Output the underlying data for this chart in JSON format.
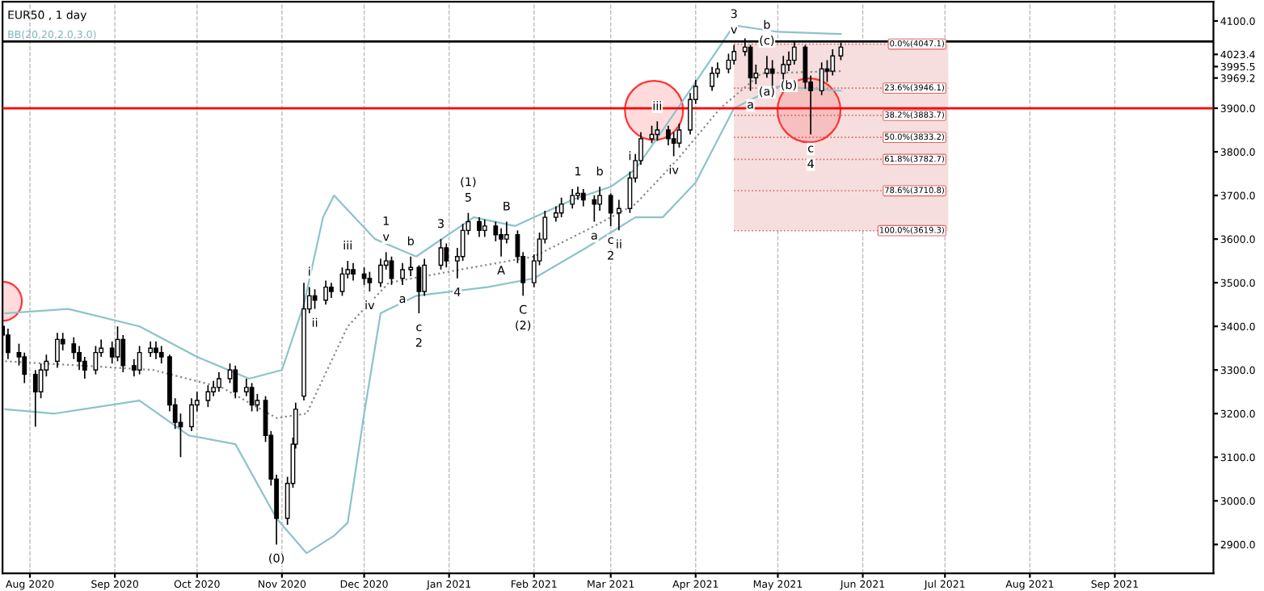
{
  "chart_data": {
    "type": "candlestick",
    "title": "EUR50 , 1 day",
    "subtitle": "BB(20,20,2.0,3.0)",
    "series": [
      {
        "color": "#000000",
        "x": [
          "2020-07-22",
          "2020-07-24",
          "2020-07-28",
          "2020-07-30",
          "2020-08-03",
          "2020-08-05",
          "2020-08-07",
          "2020-08-11",
          "2020-08-13",
          "2020-08-17",
          "2020-08-19",
          "2020-08-21",
          "2020-08-25",
          "2020-08-27",
          "2020-08-31",
          "2020-09-02",
          "2020-09-04",
          "2020-09-08",
          "2020-09-10",
          "2020-09-14",
          "2020-09-16",
          "2020-09-18",
          "2020-09-21",
          "2020-09-23",
          "2020-09-25",
          "2020-09-29",
          "2020-10-01",
          "2020-10-05",
          "2020-10-07",
          "2020-10-09",
          "2020-10-13",
          "2020-10-15",
          "2020-10-19",
          "2020-10-21",
          "2020-10-23",
          "2020-10-26",
          "2020-10-28",
          "2020-10-30",
          "2020-11-03",
          "2020-11-05",
          "2020-11-06",
          "2020-11-09",
          "2020-11-11",
          "2020-11-13",
          "2020-11-17",
          "2020-11-19",
          "2020-11-23",
          "2020-11-25",
          "2020-11-27",
          "2020-12-01",
          "2020-12-03",
          "2020-12-07",
          "2020-12-09",
          "2020-12-11",
          "2020-12-15",
          "2020-12-18",
          "2020-12-21",
          "2020-12-23",
          "2020-12-29",
          "2020-12-31",
          "2021-01-04",
          "2021-01-06",
          "2021-01-08",
          "2021-01-12",
          "2021-01-14",
          "2021-01-18",
          "2021-01-20",
          "2021-01-22",
          "2021-01-26",
          "2021-01-28",
          "2021-02-01",
          "2021-02-03",
          "2021-02-05",
          "2021-02-09",
          "2021-02-11",
          "2021-02-15",
          "2021-02-17",
          "2021-02-19",
          "2021-02-23",
          "2021-02-25",
          "2021-03-01",
          "2021-03-04",
          "2021-03-08",
          "2021-03-10",
          "2021-03-12",
          "2021-03-16",
          "2021-03-18",
          "2021-03-22",
          "2021-03-24",
          "2021-03-26",
          "2021-03-30",
          "2021-04-01",
          "2021-04-07",
          "2021-04-09",
          "2021-04-13",
          "2021-04-15",
          "2021-04-19",
          "2021-04-21",
          "2021-04-23",
          "2021-04-27",
          "2021-04-29",
          "2021-05-03",
          "2021-05-05",
          "2021-05-07",
          "2021-05-11",
          "2021-05-13",
          "2021-05-17",
          "2021-05-19",
          "2021-05-21",
          "2021-05-24"
        ],
        "ohlc": [
          [
            3400,
            3420,
            3365,
            3380
          ],
          [
            3380,
            3395,
            3325,
            3340
          ],
          [
            3340,
            3360,
            3310,
            3330
          ],
          [
            3330,
            3340,
            3270,
            3290
          ],
          [
            3290,
            3300,
            3170,
            3250
          ],
          [
            3250,
            3315,
            3235,
            3300
          ],
          [
            3300,
            3335,
            3285,
            3320
          ],
          [
            3320,
            3385,
            3305,
            3370
          ],
          [
            3370,
            3385,
            3345,
            3360
          ],
          [
            3360,
            3375,
            3325,
            3340
          ],
          [
            3340,
            3355,
            3300,
            3320
          ],
          [
            3320,
            3330,
            3280,
            3300
          ],
          [
            3300,
            3355,
            3290,
            3340
          ],
          [
            3340,
            3370,
            3330,
            3350
          ],
          [
            3350,
            3365,
            3315,
            3330
          ],
          [
            3330,
            3400,
            3320,
            3370
          ],
          [
            3370,
            3380,
            3295,
            3310
          ],
          [
            3310,
            3325,
            3285,
            3300
          ],
          [
            3300,
            3355,
            3290,
            3340
          ],
          [
            3340,
            3365,
            3330,
            3350
          ],
          [
            3350,
            3365,
            3325,
            3340
          ],
          [
            3340,
            3355,
            3315,
            3330
          ],
          [
            3330,
            3335,
            3205,
            3220
          ],
          [
            3220,
            3235,
            3165,
            3180
          ],
          [
            3180,
            3200,
            3100,
            3170
          ],
          [
            3170,
            3235,
            3160,
            3220
          ],
          [
            3220,
            3250,
            3205,
            3230
          ],
          [
            3230,
            3265,
            3215,
            3250
          ],
          [
            3250,
            3275,
            3240,
            3260
          ],
          [
            3260,
            3295,
            3250,
            3280
          ],
          [
            3280,
            3315,
            3270,
            3300
          ],
          [
            3300,
            3310,
            3235,
            3250
          ],
          [
            3250,
            3280,
            3240,
            3260
          ],
          [
            3260,
            3270,
            3205,
            3220
          ],
          [
            3220,
            3245,
            3205,
            3230
          ],
          [
            3230,
            3240,
            3135,
            3150
          ],
          [
            3150,
            3160,
            3035,
            3050
          ],
          [
            3050,
            3060,
            2900,
            2960
          ],
          [
            2960,
            3055,
            2945,
            3040
          ],
          [
            3040,
            3145,
            3030,
            3130
          ],
          [
            3130,
            3225,
            3120,
            3210
          ],
          [
            3240,
            3500,
            3230,
            3440
          ],
          [
            3440,
            3490,
            3430,
            3470
          ],
          [
            3470,
            3485,
            3440,
            3460
          ],
          [
            3460,
            3505,
            3450,
            3490
          ],
          [
            3490,
            3500,
            3465,
            3480
          ],
          [
            3480,
            3535,
            3470,
            3520
          ],
          [
            3520,
            3550,
            3510,
            3530
          ],
          [
            3530,
            3545,
            3505,
            3520
          ],
          [
            3520,
            3535,
            3495,
            3510
          ],
          [
            3510,
            3525,
            3480,
            3500
          ],
          [
            3500,
            3555,
            3490,
            3540
          ],
          [
            3540,
            3570,
            3530,
            3550
          ],
          [
            3550,
            3560,
            3495,
            3510
          ],
          [
            3510,
            3545,
            3495,
            3530
          ],
          [
            3530,
            3560,
            3515,
            3535
          ],
          [
            3535,
            3540,
            3430,
            3480
          ],
          [
            3480,
            3555,
            3470,
            3540
          ],
          [
            3540,
            3600,
            3530,
            3580
          ],
          [
            3580,
            3590,
            3535,
            3550
          ],
          [
            3550,
            3580,
            3510,
            3560
          ],
          [
            3560,
            3635,
            3550,
            3620
          ],
          [
            3620,
            3660,
            3610,
            3640
          ],
          [
            3640,
            3650,
            3605,
            3620
          ],
          [
            3620,
            3645,
            3605,
            3630
          ],
          [
            3630,
            3640,
            3595,
            3610
          ],
          [
            3610,
            3625,
            3560,
            3600
          ],
          [
            3600,
            3640,
            3590,
            3610
          ],
          [
            3610,
            3620,
            3545,
            3560
          ],
          [
            3560,
            3570,
            3470,
            3500
          ],
          [
            3500,
            3565,
            3490,
            3550
          ],
          [
            3550,
            3615,
            3540,
            3600
          ],
          [
            3600,
            3665,
            3590,
            3650
          ],
          [
            3650,
            3675,
            3640,
            3660
          ],
          [
            3660,
            3695,
            3650,
            3680
          ],
          [
            3680,
            3715,
            3670,
            3700
          ],
          [
            3700,
            3720,
            3690,
            3705
          ],
          [
            3705,
            3715,
            3675,
            3690
          ],
          [
            3690,
            3700,
            3640,
            3680
          ],
          [
            3680,
            3720,
            3665,
            3700
          ],
          [
            3700,
            3705,
            3630,
            3660
          ],
          [
            3660,
            3690,
            3620,
            3670
          ],
          [
            3670,
            3755,
            3660,
            3740
          ],
          [
            3740,
            3795,
            3730,
            3780
          ],
          [
            3780,
            3845,
            3770,
            3830
          ],
          [
            3830,
            3860,
            3820,
            3840
          ],
          [
            3840,
            3870,
            3825,
            3850
          ],
          [
            3850,
            3860,
            3815,
            3830
          ],
          [
            3830,
            3845,
            3790,
            3820
          ],
          [
            3820,
            3865,
            3810,
            3850
          ],
          [
            3850,
            3935,
            3840,
            3920
          ],
          [
            3920,
            3965,
            3910,
            3950
          ],
          [
            3950,
            3995,
            3940,
            3980
          ],
          [
            3980,
            4005,
            3970,
            3990
          ],
          [
            3990,
            4025,
            3980,
            4010
          ],
          [
            4010,
            4045,
            4000,
            4030
          ],
          [
            4030,
            4060,
            4020,
            4040
          ],
          [
            4040,
            4045,
            3940,
            3970
          ],
          [
            3970,
            4000,
            3955,
            3980
          ],
          [
            3980,
            4020,
            3970,
            3990
          ],
          [
            3990,
            4010,
            3950,
            3980
          ],
          [
            3980,
            4020,
            3965,
            4000
          ],
          [
            4000,
            4030,
            3985,
            4010
          ],
          [
            4010,
            4055,
            4000,
            4040
          ],
          [
            4040,
            4045,
            3945,
            3960
          ],
          [
            3960,
            3975,
            3840,
            3940
          ],
          [
            3940,
            4005,
            3930,
            3990
          ],
          [
            3990,
            4010,
            3960,
            3985
          ],
          [
            3985,
            4035,
            3975,
            4020
          ],
          [
            4020,
            4050,
            4010,
            4040
          ]
        ]
      },
      {
        "type": "line",
        "color": "#8cc4c8",
        "x": [
          "2020-07-23",
          "2020-08-15",
          "2020-09-10",
          "2020-10-01",
          "2020-10-20",
          "2020-11-01",
          "2020-11-09",
          "2020-11-16",
          "2020-11-20",
          "2020-12-05",
          "2020-12-20",
          "2021-01-10",
          "2021-01-25",
          "2021-02-15",
          "2021-03-01",
          "2021-03-10",
          "2021-03-20",
          "2021-04-01",
          "2021-04-15",
          "2021-05-01",
          "2021-05-24"
        ],
        "values": [
          3430,
          3440,
          3400,
          3330,
          3280,
          3300,
          3450,
          3650,
          3700,
          3600,
          3560,
          3650,
          3630,
          3690,
          3720,
          3760,
          3850,
          3960,
          4090,
          4075,
          4070
        ]
      },
      {
        "type": "line",
        "color": "#8cc4c8",
        "x": [
          "2020-07-23",
          "2020-08-10",
          "2020-09-10",
          "2020-09-28",
          "2020-10-15",
          "2020-10-30",
          "2020-11-10",
          "2020-11-20",
          "2020-11-25",
          "2020-12-01",
          "2020-12-07",
          "2020-12-20",
          "2021-01-15",
          "2021-02-01",
          "2021-02-20",
          "2021-03-10",
          "2021-03-20",
          "2021-04-01",
          "2021-04-15",
          "2021-05-01",
          "2021-05-24"
        ],
        "values": [
          3210,
          3200,
          3230,
          3150,
          3130,
          2960,
          2880,
          2920,
          2950,
          3200,
          3430,
          3470,
          3490,
          3510,
          3580,
          3650,
          3650,
          3730,
          3900,
          3950,
          3940
        ]
      },
      {
        "type": "line",
        "color": "#888888",
        "line_style": "dotted",
        "x": [
          "2020-07-23",
          "2020-08-20",
          "2020-09-15",
          "2020-10-10",
          "2020-10-30",
          "2020-11-10",
          "2020-11-25",
          "2020-12-10",
          "2021-01-05",
          "2021-02-01",
          "2021-02-20",
          "2021-03-10",
          "2021-03-25",
          "2021-04-10",
          "2021-04-25",
          "2021-05-24"
        ],
        "values": [
          3320,
          3310,
          3300,
          3260,
          3190,
          3200,
          3400,
          3500,
          3530,
          3560,
          3620,
          3680,
          3780,
          3900,
          3980,
          3985
        ]
      }
    ],
    "xlim": [
      "2020-07-22",
      "2021-10-07"
    ],
    "xticks": [
      {
        "value": "2020-08-01",
        "label": "Aug 2020"
      },
      {
        "value": "2020-09-01",
        "label": "Sep 2020"
      },
      {
        "value": "2020-10-01",
        "label": "Oct 2020"
      },
      {
        "value": "2020-11-01",
        "label": "Nov 2020"
      },
      {
        "value": "2020-12-01",
        "label": "Dec 2020"
      },
      {
        "value": "2021-01-01",
        "label": "Jan 2021"
      },
      {
        "value": "2021-02-01",
        "label": "Feb 2021"
      },
      {
        "value": "2021-03-01",
        "label": "Mar 2021"
      },
      {
        "value": "2021-04-01",
        "label": "Apr 2021"
      },
      {
        "value": "2021-05-01",
        "label": "May 2021"
      },
      {
        "value": "2021-06-01",
        "label": "Jun 2021"
      },
      {
        "value": "2021-07-01",
        "label": "Jul 2021"
      },
      {
        "value": "2021-08-01",
        "label": "Aug 2021"
      },
      {
        "value": "2021-09-01",
        "label": "Sep 2021"
      }
    ],
    "ylim": [
      2834,
      4144
    ],
    "yticks": [
      {
        "value": 2900,
        "label": "2900.0"
      },
      {
        "value": 3000,
        "label": "3000.0"
      },
      {
        "value": 3100,
        "label": "3100.0"
      },
      {
        "value": 3200,
        "label": "3200.0"
      },
      {
        "value": 3300,
        "label": "3300.0"
      },
      {
        "value": 3400,
        "label": "3400.0"
      },
      {
        "value": 3500,
        "label": "3500.0"
      },
      {
        "value": 3600,
        "label": "3600.0"
      },
      {
        "value": 3700,
        "label": "3700.0"
      },
      {
        "value": 3800,
        "label": "3800.0"
      },
      {
        "value": 3900,
        "label": "3900.0"
      },
      {
        "value": 3969.2,
        "label": "3969.2"
      },
      {
        "value": 3995.5,
        "label": "3995.5"
      },
      {
        "value": 4023.4,
        "label": "4023.4"
      },
      {
        "value": 4100,
        "label": "4100.0"
      }
    ],
    "grid": "x",
    "ref_lines": [
      {
        "axis": "y",
        "value": 4053,
        "color": "#000000"
      },
      {
        "axis": "y",
        "value": 3900,
        "color": "#ff0000"
      },
      {
        "axis": "y",
        "value": 4047.1,
        "label": "0.0%(4047.1)",
        "color": "#e06666",
        "line_style": "dotted"
      },
      {
        "axis": "y",
        "value": 3946.1,
        "label": "23.6%(3946.1)",
        "color": "#e06666",
        "line_style": "dotted"
      },
      {
        "axis": "y",
        "value": 3883.7,
        "label": "38.2%(3883.7)",
        "color": "#e06666",
        "line_style": "dotted"
      },
      {
        "axis": "y",
        "value": 3833.2,
        "label": "50.0%(3833.2)",
        "color": "#e06666",
        "line_style": "dotted"
      },
      {
        "axis": "y",
        "value": 3782.7,
        "label": "61.8%(3782.7)",
        "color": "#e06666",
        "line_style": "dotted"
      },
      {
        "axis": "y",
        "value": 3710.8,
        "label": "78.6%(3710.8)",
        "color": "#e06666",
        "line_style": "dotted"
      },
      {
        "axis": "y",
        "value": 3619.3,
        "label": "100.0%(3619.3)",
        "color": "#e06666",
        "line_style": "dotted"
      }
    ],
    "bands": [
      {
        "axis": "y",
        "from": 3619.3,
        "to": 4047.1,
        "color": "#f6dede"
      }
    ],
    "annotations": [
      {
        "text": "(0)",
        "x": "2020-10-30",
        "y": 2900
      },
      {
        "text": "i",
        "x": "2020-11-11",
        "y": 3490
      },
      {
        "text": "ii",
        "x": "2020-11-13",
        "y": 3440
      },
      {
        "text": "iii",
        "x": "2020-11-25",
        "y": 3550
      },
      {
        "text": "iv",
        "x": "2020-12-03",
        "y": 3480
      },
      {
        "text": "v",
        "x": "2020-12-09",
        "y": 3570
      },
      {
        "text": "1",
        "x": "2020-12-09",
        "y": 3570
      },
      {
        "text": "a",
        "x": "2020-12-15",
        "y": 3495
      },
      {
        "text": "b",
        "x": "2020-12-18",
        "y": 3560
      },
      {
        "text": "c",
        "x": "2020-12-21",
        "y": 3430
      },
      {
        "text": "2",
        "x": "2020-12-21",
        "y": 3430
      },
      {
        "text": "3",
        "x": "2020-12-29",
        "y": 3600
      },
      {
        "text": "4",
        "x": "2021-01-04",
        "y": 3510
      },
      {
        "text": "5",
        "x": "2021-01-08",
        "y": 3660
      },
      {
        "text": "(1)",
        "x": "2021-01-08",
        "y": 3660
      },
      {
        "text": "A",
        "x": "2021-01-20",
        "y": 3560
      },
      {
        "text": "B",
        "x": "2021-01-22",
        "y": 3640
      },
      {
        "text": "C",
        "x": "2021-01-28",
        "y": 3470
      },
      {
        "text": "(2)",
        "x": "2021-01-28",
        "y": 3470
      },
      {
        "text": "1",
        "x": "2021-02-17",
        "y": 3720
      },
      {
        "text": "a",
        "x": "2021-02-23",
        "y": 3640
      },
      {
        "text": "b",
        "x": "2021-02-25",
        "y": 3720
      },
      {
        "text": "c",
        "x": "2021-03-01",
        "y": 3630
      },
      {
        "text": "2",
        "x": "2021-03-01",
        "y": 3630
      },
      {
        "text": "i",
        "x": "2021-03-08",
        "y": 3755
      },
      {
        "text": "ii",
        "x": "2021-03-04",
        "y": 3620
      },
      {
        "text": "iii",
        "x": "2021-03-18",
        "y": 3870
      },
      {
        "text": "iv",
        "x": "2021-03-24",
        "y": 3790
      },
      {
        "text": "v",
        "x": "2021-04-15",
        "y": 4045
      },
      {
        "text": "3",
        "x": "2021-04-15",
        "y": 4045
      },
      {
        "text": "a",
        "x": "2021-04-21",
        "y": 3940
      },
      {
        "text": "(a)",
        "x": "2021-04-27",
        "y": 3970
      },
      {
        "text": "(b)",
        "x": "2021-05-05",
        "y": 3985
      },
      {
        "text": "(c)",
        "x": "2021-04-27",
        "y": 4020
      },
      {
        "text": "b",
        "x": "2021-04-27",
        "y": 4020
      },
      {
        "text": "c",
        "x": "2021-05-13",
        "y": 3840
      },
      {
        "text": "4",
        "x": "2021-05-13",
        "y": 3840
      }
    ]
  }
}
